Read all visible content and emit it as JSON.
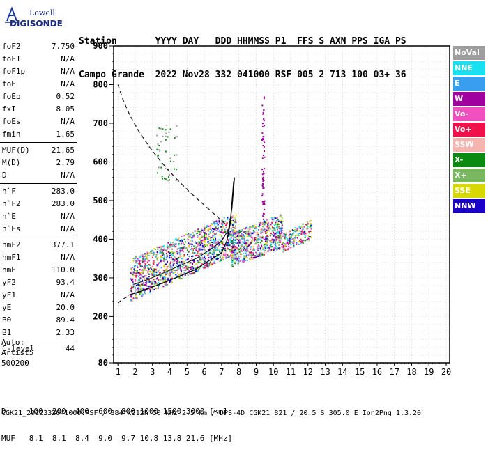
{
  "logo": {
    "top": "Lowell",
    "bottom": "DIGISONDE"
  },
  "header": {
    "line1": "Station       YYYY DAY   DDD HHMMSS P1  FFS S AXN PPS IGA PS",
    "line2": "Campo Grande  2022 Nov28 332 041000 RSF 005 2 713 100 03+ 36"
  },
  "params": [
    {
      "label": "foF2",
      "value": "7.750"
    },
    {
      "label": "foF1",
      "value": "N/A"
    },
    {
      "label": "foF1p",
      "value": "N/A"
    },
    {
      "label": "foE",
      "value": "N/A"
    },
    {
      "label": "foEp",
      "value": "0.52"
    },
    {
      "label": "fxI",
      "value": "8.05"
    },
    {
      "label": "foEs",
      "value": "N/A"
    },
    {
      "label": "fmin",
      "value": "1.65"
    },
    {
      "label": "MUF(D)",
      "value": "21.65"
    },
    {
      "label": "M(D)",
      "value": "2.79"
    },
    {
      "label": "D",
      "value": "N/A"
    },
    {
      "label": "h`F",
      "value": "283.0"
    },
    {
      "label": "h`F2",
      "value": "283.0"
    },
    {
      "label": "h`E",
      "value": "N/A"
    },
    {
      "label": "h`Es",
      "value": "N/A"
    },
    {
      "label": "hmF2",
      "value": "377.1"
    },
    {
      "label": "hmF1",
      "value": "N/A"
    },
    {
      "label": "hmE",
      "value": "110.0"
    },
    {
      "label": "yF2",
      "value": "93.4"
    },
    {
      "label": "yF1",
      "value": "N/A"
    },
    {
      "label": "yE",
      "value": "20.0"
    },
    {
      "label": "B0",
      "value": "89.4"
    },
    {
      "label": "B1",
      "value": "2.33"
    },
    {
      "label": "C-level",
      "value": "44"
    }
  ],
  "auto": {
    "line1": "Auto:",
    "line2": "Artist5",
    "line3": "500200"
  },
  "legend": [
    {
      "label": "NoVal",
      "color": "#9e9e9e"
    },
    {
      "label": "NNE",
      "color": "#19e0f0"
    },
    {
      "label": "E",
      "color": "#3a9ef0"
    },
    {
      "label": "W",
      "color": "#a0009e"
    },
    {
      "label": "Vo-",
      "color": "#f050c0"
    },
    {
      "label": "Vo+",
      "color": "#f0104a"
    },
    {
      "label": "SSW",
      "color": "#f4b4b0"
    },
    {
      "label": "X-",
      "color": "#0a8a10"
    },
    {
      "label": "X+",
      "color": "#7ab860"
    },
    {
      "label": "SSE",
      "color": "#d8d800"
    },
    {
      "label": "NNW",
      "color": "#1a00c8"
    }
  ],
  "bottom_table": {
    "line1": "D     100  200  400  600  800 1000 1500 3000 [km]",
    "line2": "MUF   8.1  8.1  8.4  9.0  9.7 10.8 13.8 21.6 [MHz]"
  },
  "footer": "CGK21_2022332041000.RSF / 384fx512h 50 kHz 2.5 km / DPS-4D CGK21 821 / 20.5 S 305.0 E Ion2Png 1.3.20",
  "chart_data": {
    "type": "scatter",
    "title": "",
    "xlabel": "",
    "ylabel": "",
    "xlim": [
      1,
      20
    ],
    "ylim": [
      80,
      900
    ],
    "x_ticks": [
      "1",
      "2",
      "3",
      "4",
      "5",
      "6",
      "7",
      "8",
      "9",
      "10",
      "11",
      "12",
      "13",
      "14",
      "15",
      "16",
      "17",
      "18",
      "19",
      "20"
    ],
    "y_ticks": [
      "80",
      "200",
      "300",
      "400",
      "500",
      "600",
      "700",
      "800",
      "900"
    ],
    "grid": true,
    "legend_position": "right",
    "dashed_curve": {
      "x": [
        1.0,
        1.3,
        1.7,
        2.2,
        2.8,
        3.5,
        4.3,
        5.2,
        6.2,
        7.2
      ],
      "y": [
        800,
        760,
        720,
        680,
        640,
        600,
        560,
        520,
        480,
        440
      ]
    },
    "dashed_curve_low": {
      "x": [
        1.0,
        1.3,
        1.7
      ],
      "y": [
        235,
        245,
        255
      ]
    },
    "solid_profile_true": {
      "x": [
        1.6,
        2.5,
        3.5,
        4.5,
        5.5,
        6.3,
        7.0,
        7.3,
        7.5,
        7.7
      ],
      "y": [
        255,
        268,
        285,
        303,
        322,
        345,
        365,
        395,
        440,
        550
      ]
    },
    "solid_profile_virtual": {
      "x": [
        1.9,
        2.7,
        3.6,
        4.6,
        5.6,
        6.4,
        7.0,
        7.4,
        7.6,
        7.75
      ],
      "y": [
        283,
        295,
        312,
        332,
        352,
        375,
        395,
        425,
        480,
        560
      ]
    },
    "echo_regions": [
      {
        "x_range": [
          1.7,
          7.8
        ],
        "y_base": [
          280,
          400
        ],
        "spread": 55
      },
      {
        "x_range": [
          7.5,
          10.5
        ],
        "y_base": [
          360,
          410
        ],
        "spread": 45
      },
      {
        "x_range": [
          10.5,
          12.2
        ],
        "y_base": [
          385,
          420
        ],
        "spread": 25
      }
    ]
  }
}
